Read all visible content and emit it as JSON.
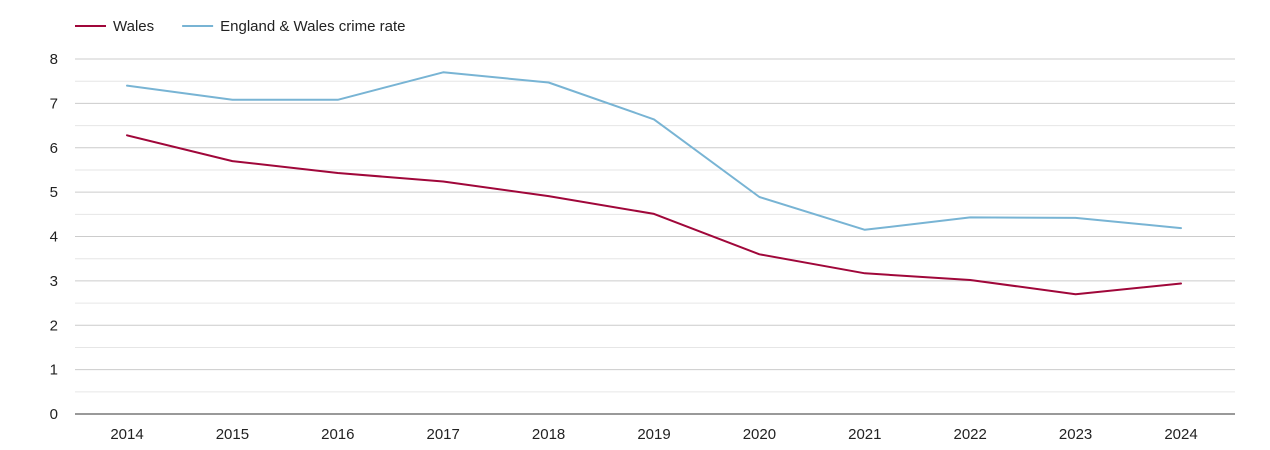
{
  "chart_data": {
    "type": "line",
    "categories": [
      "2014",
      "2015",
      "2016",
      "2017",
      "2018",
      "2019",
      "2020",
      "2021",
      "2022",
      "2023",
      "2024"
    ],
    "series": [
      {
        "name": "Wales",
        "color": "#a0073a",
        "values": [
          6.28,
          5.7,
          5.43,
          5.24,
          4.91,
          4.51,
          3.6,
          3.17,
          3.02,
          2.7,
          2.94
        ]
      },
      {
        "name": "England & Wales crime rate",
        "color": "#78b4d4",
        "values": [
          7.4,
          7.08,
          7.08,
          7.7,
          7.47,
          6.64,
          4.89,
          4.15,
          4.43,
          4.42,
          4.19
        ]
      }
    ],
    "y_ticks": [
      "0",
      "1",
      "2",
      "3",
      "4",
      "5",
      "6",
      "7",
      "8"
    ],
    "ylim": [
      0,
      8
    ],
    "grid": true,
    "minor_grid": true,
    "legend_position": "top-left",
    "grid_color": "#cccccc",
    "minor_grid_color": "#e6e6e6",
    "axis_color": "#333333"
  }
}
